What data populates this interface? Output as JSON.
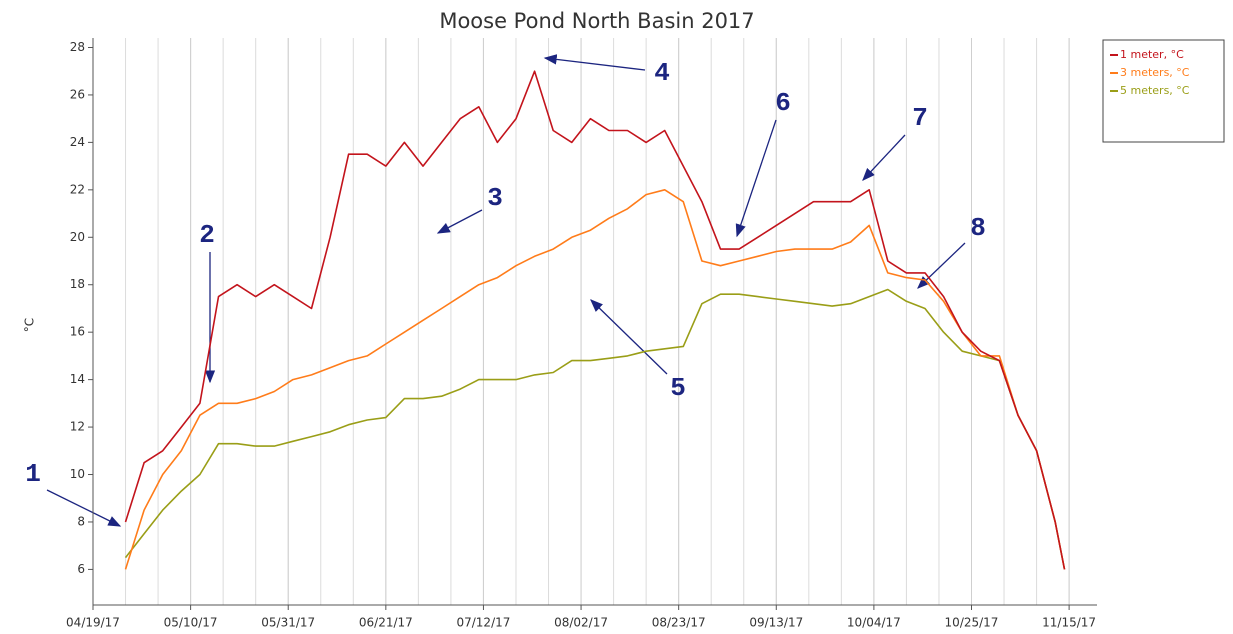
{
  "chart_data": {
    "type": "line",
    "title": "Moose Pond North Basin 2017",
    "y_label": "°C",
    "x": [
      "04/26/17",
      "04/30/17",
      "05/04/17",
      "05/08/17",
      "05/12/17",
      "05/16/17",
      "05/20/17",
      "05/24/17",
      "05/28/17",
      "06/01/17",
      "06/05/17",
      "06/09/17",
      "06/13/17",
      "06/17/17",
      "06/21/17",
      "06/25/17",
      "06/29/17",
      "07/03/17",
      "07/07/17",
      "07/11/17",
      "07/15/17",
      "07/19/17",
      "07/23/17",
      "07/27/17",
      "07/31/17",
      "08/04/17",
      "08/08/17",
      "08/12/17",
      "08/16/17",
      "08/20/17",
      "08/24/17",
      "08/28/17",
      "09/01/17",
      "09/05/17",
      "09/09/17",
      "09/13/17",
      "09/17/17",
      "09/21/17",
      "09/25/17",
      "09/29/17",
      "10/03/17",
      "10/07/17",
      "10/11/17",
      "10/15/17",
      "10/19/17",
      "10/23/17",
      "10/27/17",
      "10/31/17",
      "11/04/17",
      "11/08/17",
      "11/12/17",
      "11/14/17"
    ],
    "series": [
      {
        "name": "1 meter, °C",
        "color": "#c3141c",
        "values": [
          8,
          10.5,
          11,
          12,
          13,
          17.5,
          18,
          17.5,
          18,
          17.5,
          17,
          20,
          23.5,
          23.5,
          23,
          24,
          23,
          24,
          25,
          25.5,
          24,
          25,
          27,
          24.5,
          24,
          25,
          24.5,
          24.5,
          24,
          24.5,
          23,
          21.5,
          19.5,
          19.5,
          20,
          20.5,
          21,
          21.5,
          21.5,
          21.5,
          22,
          19,
          18.5,
          18.5,
          17.5,
          16,
          15.2,
          14.8,
          12.5,
          11,
          8,
          6
        ]
      },
      {
        "name": "3 meters, °C",
        "color": "#ff7c1a",
        "values": [
          6,
          8.5,
          10,
          11,
          12.5,
          13,
          13,
          13.2,
          13.5,
          14,
          14.2,
          14.5,
          14.8,
          15,
          15.5,
          16,
          16.5,
          17,
          17.5,
          18,
          18.3,
          18.8,
          19.2,
          19.5,
          20,
          20.3,
          20.8,
          21.2,
          21.8,
          22,
          21.5,
          19,
          18.8,
          19,
          19.2,
          19.4,
          19.5,
          19.5,
          19.5,
          19.8,
          20.5,
          18.5,
          18.3,
          18.2,
          17.3,
          16,
          15,
          15,
          12.5,
          11,
          8,
          6
        ]
      },
      {
        "name": "5 meters, °C",
        "color": "#9a9e17",
        "values": [
          6.5,
          7.5,
          8.5,
          9.3,
          10,
          11.3,
          11.3,
          11.2,
          11.2,
          11.4,
          11.6,
          11.8,
          12.1,
          12.3,
          12.4,
          13.2,
          13.2,
          13.3,
          13.6,
          14,
          14,
          14,
          14.2,
          14.3,
          14.8,
          14.8,
          14.9,
          15,
          15.2,
          15.3,
          15.4,
          17.2,
          17.6,
          17.6,
          17.5,
          17.4,
          17.3,
          17.2,
          17.1,
          17.2,
          17.5,
          17.8,
          17.3,
          17,
          16,
          15.2,
          15,
          14.8,
          12.5,
          11,
          8,
          6
        ]
      }
    ],
    "xlim": [
      "04/19/17",
      "11/21/17"
    ],
    "xticks": [
      "04/19/17",
      "05/10/17",
      "05/31/17",
      "06/21/17",
      "07/12/17",
      "08/02/17",
      "08/23/17",
      "09/13/17",
      "10/04/17",
      "10/25/17",
      "11/15/17"
    ],
    "ylim": [
      4.5,
      28.4
    ],
    "yticks": [
      6,
      8,
      10,
      12,
      14,
      16,
      18,
      20,
      22,
      24,
      26,
      28
    ],
    "grid": true,
    "legend": "top-right",
    "annotations": [
      "1",
      "2",
      "3",
      "4",
      "5",
      "6",
      "7",
      "8"
    ]
  }
}
